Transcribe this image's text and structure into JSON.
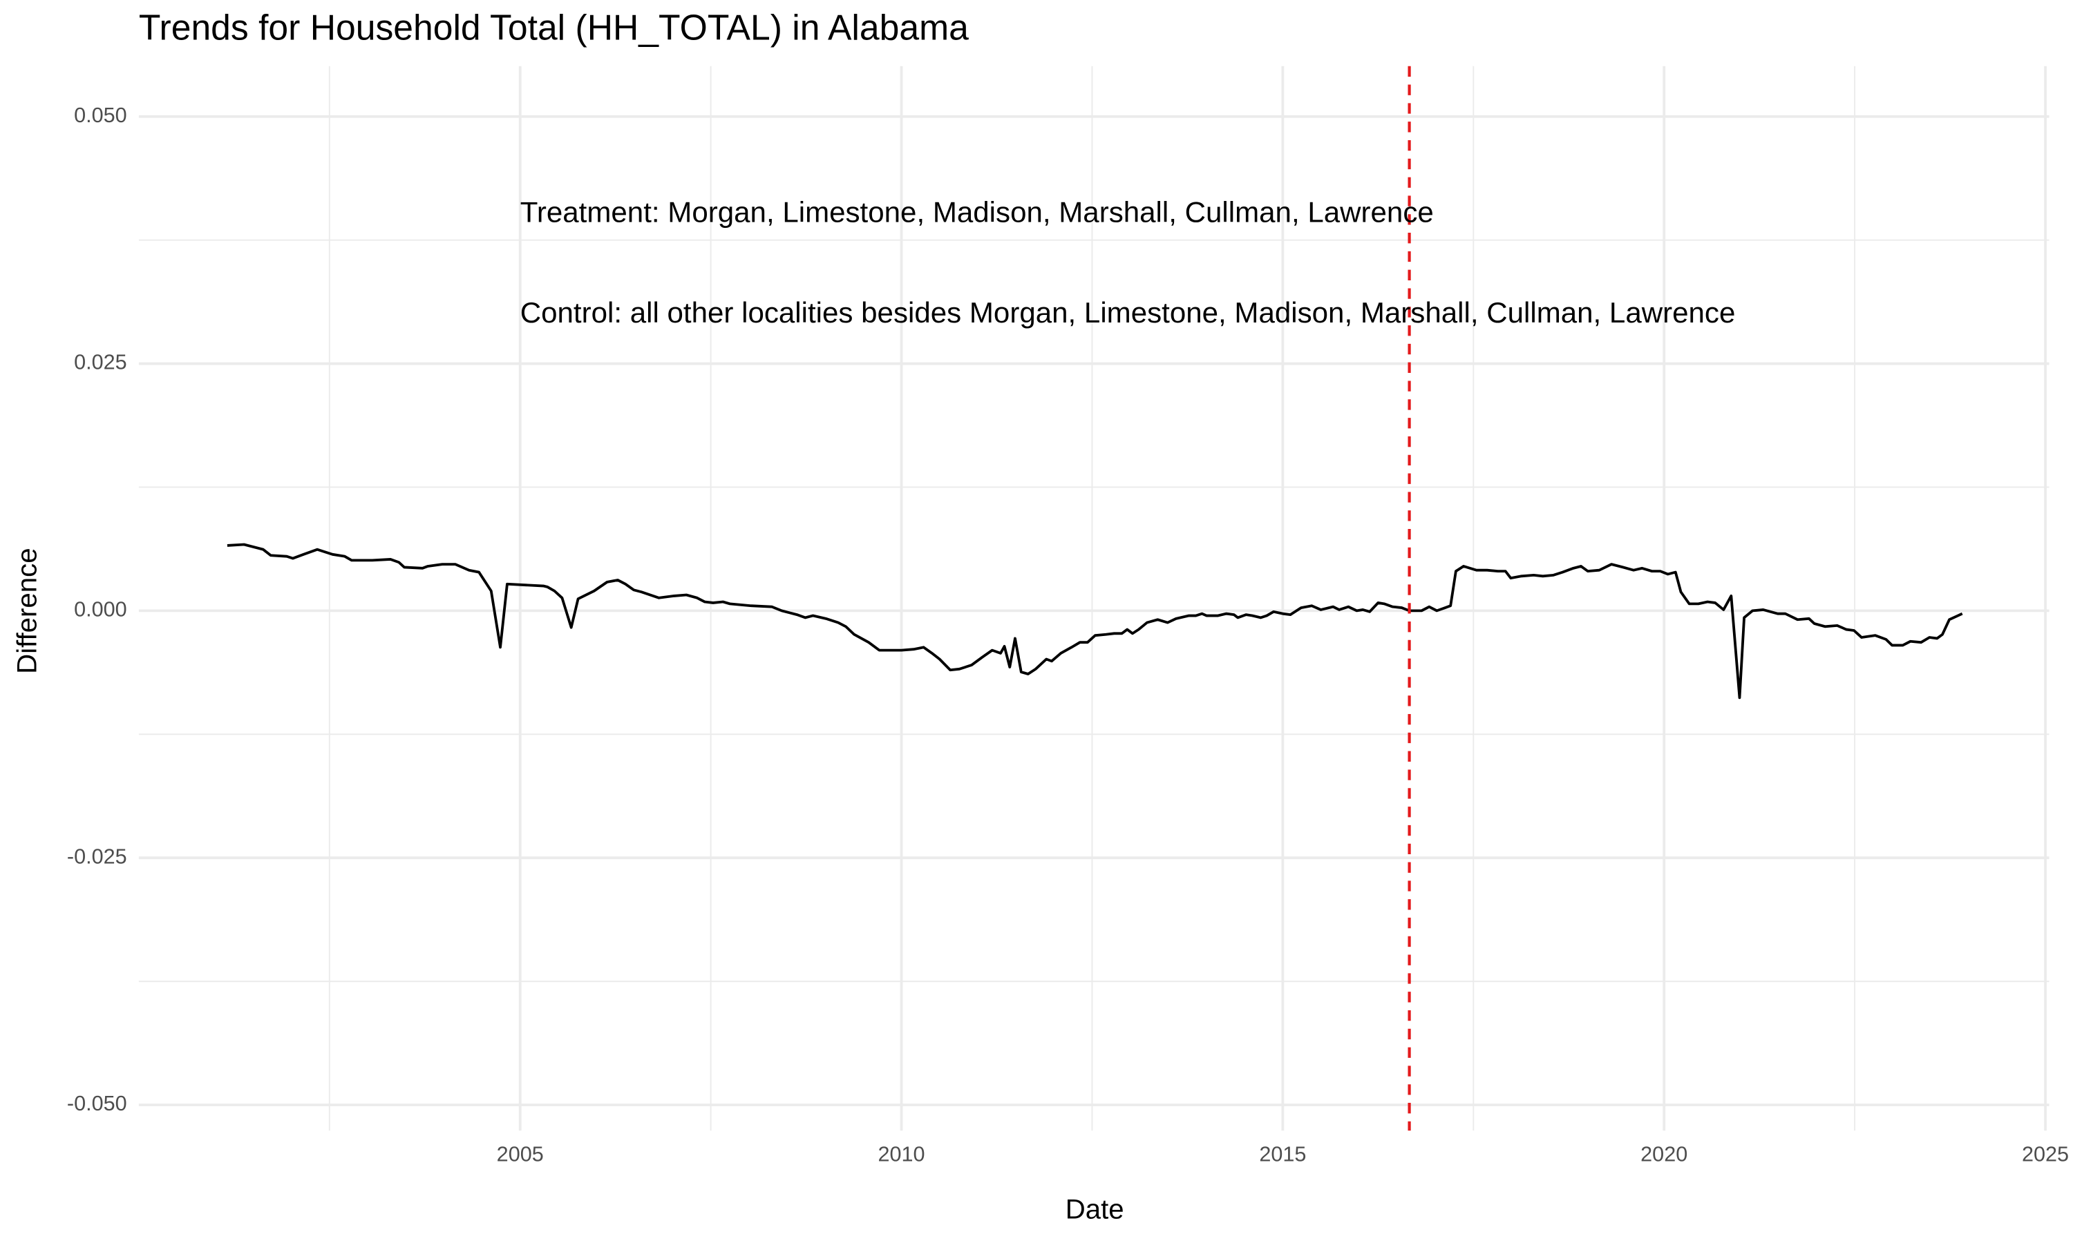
{
  "chart_data": {
    "type": "line",
    "title": "Trends for Household Total (HH_TOTAL) in Alabama",
    "x_label": "Date",
    "y_label": "Difference",
    "annotations": [
      "Treatment: Morgan, Limestone, Madison, Marshall, Cullman, Lawrence",
      "Control: all other localities besides Morgan, Limestone, Madison, Marshall, Cullman, Lawrence"
    ],
    "vline": {
      "x": 2016.66,
      "color": "#e31a1c"
    },
    "xlim": [
      2000,
      2025.05
    ],
    "xticks": [
      2005,
      2010,
      2015,
      2020,
      2025
    ],
    "ylim": [
      -0.0526,
      0.0551
    ],
    "yticks": [
      {
        "value": -0.05,
        "label": "-0.050"
      },
      {
        "value": -0.025,
        "label": "-0.025"
      },
      {
        "value": 0,
        "label": "0.000"
      },
      {
        "value": 0.025,
        "label": "0.025"
      },
      {
        "value": 0.05,
        "label": "0.050"
      }
    ],
    "grid": true,
    "x": [
      2001.16,
      2001.38,
      2001.63,
      2001.73,
      2001.94,
      2002.02,
      2002.16,
      2002.34,
      2002.54,
      2002.7,
      2002.79,
      2003.06,
      2003.3,
      2003.41,
      2003.48,
      2003.72,
      2003.79,
      2003.98,
      2004.15,
      2004.33,
      2004.46,
      2004.62,
      2004.74,
      2004.83,
      2005.31,
      2005.36,
      2005.45,
      2005.55,
      2005.67,
      2005.76,
      2005.97,
      2006.14,
      2006.28,
      2006.38,
      2006.49,
      2006.59,
      2006.82,
      2007.02,
      2007.18,
      2007.32,
      2007.42,
      2007.53,
      2007.66,
      2007.75,
      2008.03,
      2008.3,
      2008.43,
      2008.63,
      2008.74,
      2008.84,
      2009.01,
      2009.17,
      2009.27,
      2009.38,
      2009.57,
      2009.71,
      2010.0,
      2010.16,
      2010.29,
      2010.4,
      2010.5,
      2010.64,
      2010.76,
      2010.92,
      2011.06,
      2011.19,
      2011.3,
      2011.35,
      2011.42,
      2011.49,
      2011.57,
      2011.66,
      2011.76,
      2011.9,
      2011.97,
      2012.09,
      2012.23,
      2012.34,
      2012.44,
      2012.54,
      2012.68,
      2012.79,
      2012.89,
      2012.96,
      2013.03,
      2013.11,
      2013.22,
      2013.36,
      2013.49,
      2013.6,
      2013.77,
      2013.86,
      2013.94,
      2014.0,
      2014.15,
      2014.26,
      2014.36,
      2014.41,
      2014.52,
      2014.6,
      2014.71,
      2014.79,
      2014.88,
      2015.0,
      2015.1,
      2015.24,
      2015.38,
      2015.5,
      2015.66,
      2015.74,
      2015.86,
      2015.97,
      2016.05,
      2016.14,
      2016.25,
      2016.33,
      2016.44,
      2016.56,
      2016.66,
      2016.82,
      2016.92,
      2017.02,
      2017.13,
      2017.2,
      2017.27,
      2017.37,
      2017.54,
      2017.68,
      2017.82,
      2017.92,
      2017.99,
      2018.13,
      2018.29,
      2018.41,
      2018.55,
      2018.67,
      2018.81,
      2018.91,
      2019.0,
      2019.15,
      2019.31,
      2019.46,
      2019.6,
      2019.71,
      2019.84,
      2019.95,
      2020.05,
      2020.15,
      2020.22,
      2020.33,
      2020.45,
      2020.57,
      2020.67,
      2020.78,
      2020.88,
      2020.99,
      2021.05,
      2021.16,
      2021.3,
      2021.49,
      2021.59,
      2021.75,
      2021.9,
      2021.97,
      2022.11,
      2022.27,
      2022.39,
      2022.49,
      2022.59,
      2022.77,
      2022.91,
      2022.99,
      2023.13,
      2023.23,
      2023.37,
      2023.48,
      2023.58,
      2023.65,
      2023.74,
      2023.91
    ],
    "series": [
      {
        "color": "#000000",
        "values": [
          0.0066,
          0.0067,
          0.0062,
          0.0056,
          0.0055,
          0.0053,
          0.0057,
          0.0062,
          0.0057,
          0.0055,
          0.0051,
          0.0051,
          0.0052,
          0.0049,
          0.0044,
          0.0043,
          0.0045,
          0.0047,
          0.0047,
          0.0041,
          0.0039,
          0.002,
          -0.0037,
          0.0027,
          0.0025,
          0.0024,
          0.002,
          0.0013,
          -0.0017,
          0.0012,
          0.002,
          0.0029,
          0.0031,
          0.0027,
          0.0021,
          0.0019,
          0.0013,
          0.0015,
          0.0016,
          0.0013,
          0.0009,
          0.0008,
          0.0009,
          0.0007,
          0.0005,
          0.0004,
          0.0,
          -0.0004,
          -0.0007,
          -0.0005,
          -0.0008,
          -0.0012,
          -0.0016,
          -0.0024,
          -0.0032,
          -0.004,
          -0.004,
          -0.0039,
          -0.0037,
          -0.0043,
          -0.0049,
          -0.006,
          -0.0059,
          -0.0055,
          -0.0047,
          -0.004,
          -0.0043,
          -0.0036,
          -0.0057,
          -0.0028,
          -0.0062,
          -0.0064,
          -0.0059,
          -0.0049,
          -0.0051,
          -0.0043,
          -0.0037,
          -0.0032,
          -0.0032,
          -0.0025,
          -0.0024,
          -0.0023,
          -0.0023,
          -0.0019,
          -0.0023,
          -0.0019,
          -0.0012,
          -0.0009,
          -0.0012,
          -0.0008,
          -0.0005,
          -0.0005,
          -0.0003,
          -0.0005,
          -0.0005,
          -0.0003,
          -0.0004,
          -0.0007,
          -0.0004,
          -0.0005,
          -0.0007,
          -0.0005,
          -0.0001,
          -0.0003,
          -0.0004,
          0.0003,
          0.0005,
          0.0001,
          0.0004,
          0.0001,
          0.0004,
          0.0,
          0.0001,
          -0.0001,
          0.0008,
          0.0007,
          0.0004,
          0.0003,
          0.0,
          0.0,
          0.0004,
          0.0,
          0.0003,
          0.0005,
          0.004,
          0.0045,
          0.0041,
          0.0041,
          0.004,
          0.004,
          0.0033,
          0.0035,
          0.0036,
          0.0035,
          0.0036,
          0.0039,
          0.0043,
          0.0045,
          0.004,
          0.0041,
          0.0047,
          0.0044,
          0.0041,
          0.0043,
          0.004,
          0.004,
          0.0037,
          0.0039,
          0.0019,
          0.0007,
          0.0007,
          0.0009,
          0.0008,
          0.0001,
          0.0015,
          -0.0088,
          -0.0007,
          0.0,
          0.0001,
          -0.0003,
          -0.0003,
          -0.0009,
          -0.0008,
          -0.0013,
          -0.0016,
          -0.0015,
          -0.0019,
          -0.002,
          -0.0027,
          -0.0025,
          -0.0029,
          -0.0035,
          -0.0035,
          -0.0031,
          -0.0032,
          -0.0027,
          -0.0028,
          -0.0024,
          -0.0009,
          -0.0003
        ]
      }
    ]
  }
}
